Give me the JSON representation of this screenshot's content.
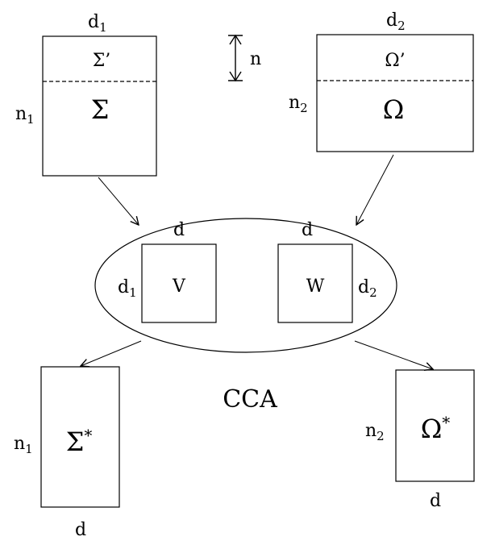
{
  "diagram": {
    "top_left": {
      "width_label": "d",
      "width_sub": "1",
      "height_label": "n",
      "height_sub": "1",
      "upper_symbol": "Σ’",
      "lower_symbol": "Σ"
    },
    "top_right": {
      "width_label": "d",
      "width_sub": "2",
      "height_label": "n",
      "height_sub": "2",
      "upper_symbol": "Ω’",
      "lower_symbol": "Ω"
    },
    "n_marker": "n",
    "ellipse": {
      "left_box": {
        "symbol": "V",
        "top_label": "d",
        "side_label": "d",
        "side_sub": "1"
      },
      "right_box": {
        "symbol": "W",
        "top_label": "d",
        "side_label": "d",
        "side_sub": "2"
      }
    },
    "center_label": "CCA",
    "bottom_left": {
      "symbol": "Σ",
      "superscript": "*",
      "height_label": "n",
      "height_sub": "1",
      "width_label": "d"
    },
    "bottom_right": {
      "symbol": "Ω",
      "superscript": "*",
      "height_label": "n",
      "height_sub": "2",
      "width_label": "d"
    }
  }
}
